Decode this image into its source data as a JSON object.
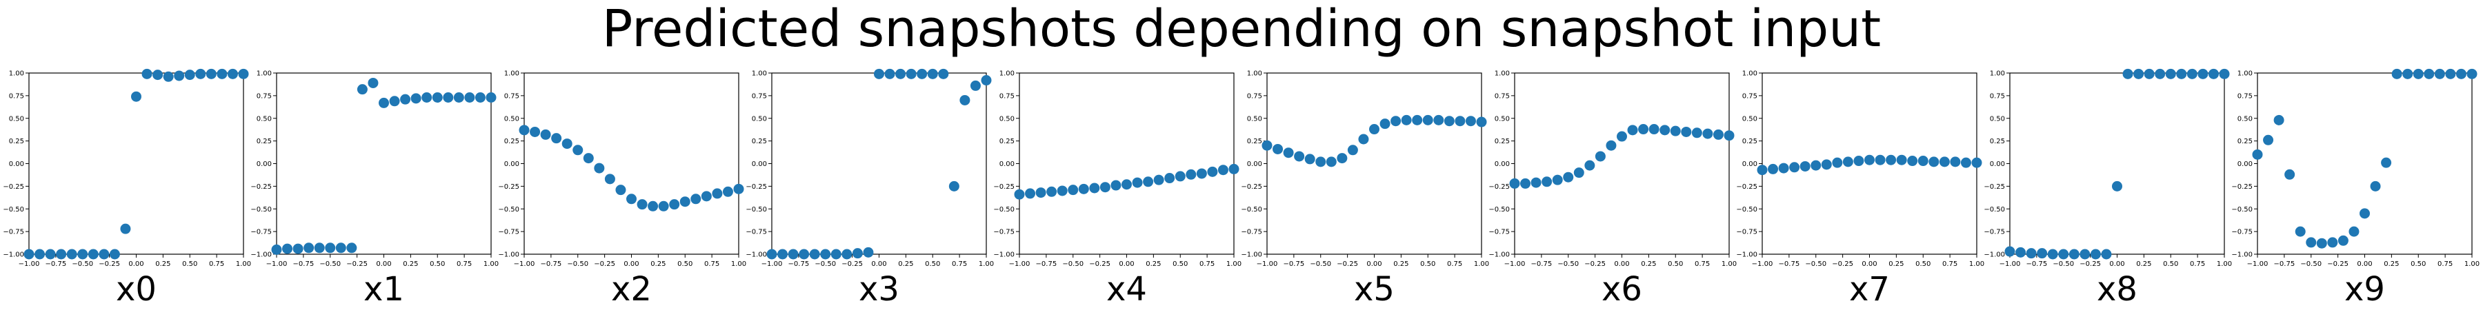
{
  "title": "Predicted snapshots depending on snapshot input",
  "chart_data": {
    "type": "scatter",
    "title": "Predicted snapshots depending on snapshot input",
    "xlim": [
      -1,
      1
    ],
    "ylim": [
      -1,
      1
    ],
    "xticks": [
      "−1.00",
      "−0.75",
      "−0.50",
      "−0.25",
      "0.00",
      "0.25",
      "0.50",
      "0.75",
      "1.00"
    ],
    "yticks": [
      "−1.00",
      "−0.75",
      "−0.50",
      "−0.25",
      "0.00",
      "0.25",
      "0.50",
      "0.75",
      "1.00"
    ],
    "grid": false,
    "marker_color": "#1f77b4",
    "x": [
      -1.0,
      -0.9,
      -0.8,
      -0.7,
      -0.6,
      -0.5,
      -0.4,
      -0.3,
      -0.2,
      -0.1,
      0.0,
      0.1,
      0.2,
      0.3,
      0.4,
      0.5,
      0.6,
      0.7,
      0.8,
      0.9,
      1.0
    ],
    "panels": [
      {
        "xlabel": "x0",
        "y": [
          -1.0,
          -1.0,
          -1.0,
          -1.0,
          -1.0,
          -1.0,
          -1.0,
          -1.0,
          -1.0,
          -0.72,
          0.74,
          0.99,
          0.98,
          0.96,
          0.97,
          0.98,
          0.99,
          0.99,
          0.99,
          0.99,
          0.99
        ]
      },
      {
        "xlabel": "x1",
        "y": [
          -0.95,
          -0.94,
          -0.94,
          -0.93,
          -0.93,
          -0.93,
          -0.93,
          -0.93,
          0.82,
          0.89,
          0.67,
          0.69,
          0.71,
          0.72,
          0.73,
          0.73,
          0.73,
          0.73,
          0.73,
          0.73,
          0.73
        ]
      },
      {
        "xlabel": "x2",
        "y": [
          0.37,
          0.35,
          0.32,
          0.28,
          0.22,
          0.15,
          0.06,
          -0.05,
          -0.17,
          -0.29,
          -0.39,
          -0.45,
          -0.47,
          -0.47,
          -0.45,
          -0.42,
          -0.39,
          -0.36,
          -0.33,
          -0.31,
          -0.28
        ]
      },
      {
        "xlabel": "x3",
        "y": [
          -1.0,
          -1.0,
          -1.0,
          -1.0,
          -1.0,
          -1.0,
          -1.0,
          -1.0,
          -0.99,
          -0.98,
          0.99,
          0.99,
          0.99,
          0.99,
          0.99,
          0.99,
          0.99,
          -0.25,
          0.7,
          0.86,
          0.92
        ]
      },
      {
        "xlabel": "x4",
        "y": [
          -0.34,
          -0.33,
          -0.32,
          -0.31,
          -0.3,
          -0.29,
          -0.28,
          -0.27,
          -0.26,
          -0.24,
          -0.23,
          -0.21,
          -0.2,
          -0.18,
          -0.16,
          -0.14,
          -0.12,
          -0.11,
          -0.09,
          -0.07,
          -0.06
        ]
      },
      {
        "xlabel": "x5",
        "y": [
          0.2,
          0.16,
          0.12,
          0.08,
          0.05,
          0.02,
          0.02,
          0.06,
          0.15,
          0.27,
          0.38,
          0.44,
          0.47,
          0.48,
          0.48,
          0.48,
          0.48,
          0.47,
          0.47,
          0.47,
          0.46
        ]
      },
      {
        "xlabel": "x6",
        "y": [
          -0.22,
          -0.22,
          -0.21,
          -0.2,
          -0.18,
          -0.15,
          -0.1,
          -0.02,
          0.08,
          0.2,
          0.3,
          0.37,
          0.38,
          0.38,
          0.37,
          0.36,
          0.35,
          0.34,
          0.33,
          0.32,
          0.31
        ]
      },
      {
        "xlabel": "x7",
        "y": [
          -0.07,
          -0.06,
          -0.05,
          -0.04,
          -0.03,
          -0.02,
          -0.01,
          0.01,
          0.02,
          0.03,
          0.04,
          0.04,
          0.04,
          0.04,
          0.03,
          0.03,
          0.02,
          0.02,
          0.02,
          0.01,
          0.01
        ]
      },
      {
        "xlabel": "x8",
        "y": [
          -0.97,
          -0.98,
          -0.99,
          -0.99,
          -1.0,
          -1.0,
          -1.0,
          -1.0,
          -1.0,
          -1.0,
          -0.25,
          0.99,
          0.99,
          0.99,
          0.99,
          0.99,
          0.99,
          0.99,
          0.99,
          0.99,
          0.99
        ]
      },
      {
        "xlabel": "x9",
        "y": [
          0.1,
          0.26,
          0.48,
          -0.12,
          -0.75,
          -0.87,
          -0.88,
          -0.87,
          -0.85,
          -0.75,
          -0.55,
          -0.25,
          0.01,
          0.99,
          0.99,
          0.99,
          0.99,
          0.99,
          0.99,
          0.99,
          0.99
        ]
      }
    ]
  }
}
